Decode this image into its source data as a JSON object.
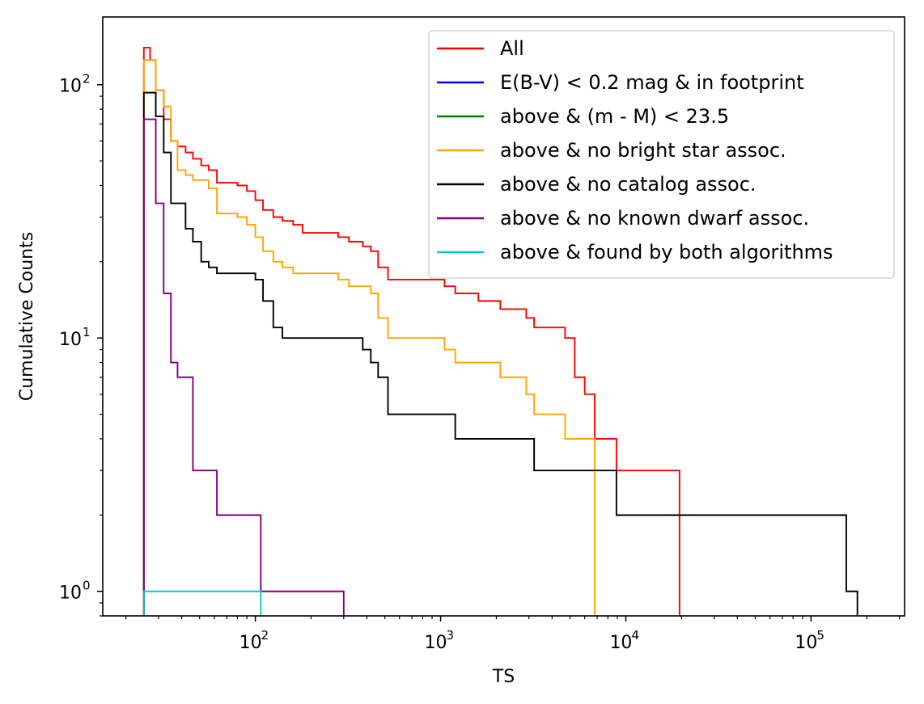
{
  "chart_data": {
    "type": "line",
    "xlabel": "TS",
    "ylabel": "Cumulative Counts",
    "xscale": "log",
    "yscale": "log",
    "xlim": [
      15,
      320000
    ],
    "ylim": [
      0.8,
      185
    ],
    "grid": false,
    "legend_position": "top-right",
    "x_ticks": [
      {
        "base": "10",
        "exp": "2",
        "value": 100
      },
      {
        "base": "10",
        "exp": "3",
        "value": 1000
      },
      {
        "base": "10",
        "exp": "4",
        "value": 10000
      },
      {
        "base": "10",
        "exp": "5",
        "value": 100000
      }
    ],
    "y_ticks": [
      {
        "base": "10",
        "exp": "0",
        "value": 1
      },
      {
        "base": "10",
        "exp": "1",
        "value": 10
      },
      {
        "base": "10",
        "exp": "2",
        "value": 100
      }
    ],
    "series": [
      {
        "name": "All",
        "color": "#ff0000",
        "x": [
          25,
          27,
          29,
          32,
          35,
          38,
          42,
          46,
          51,
          56,
          62,
          80,
          90,
          100,
          110,
          125,
          140,
          160,
          180,
          280,
          320,
          380,
          420,
          460,
          520,
          1050,
          1200,
          1600,
          2100,
          2900,
          3200,
          4700,
          5300,
          6000,
          6800,
          8900,
          19500
        ],
        "y": [
          140,
          125,
          95,
          73,
          60,
          57,
          54,
          51,
          48,
          46,
          41,
          40,
          38,
          35,
          32,
          30,
          29,
          28,
          26,
          25,
          24,
          23,
          22,
          19,
          17,
          16,
          15,
          14,
          13,
          12,
          11,
          10,
          7,
          6,
          4,
          3,
          2
        ]
      },
      {
        "name": "E(B-V) < 0.2 mag & in footprint",
        "color": "#0000ff",
        "x": [],
        "y": []
      },
      {
        "name": "above & (m - M) < 23.5",
        "color": "#008000",
        "x": [],
        "y": []
      },
      {
        "name": "above & no bright star assoc.",
        "color": "#ffa500",
        "x": [
          25,
          29,
          32,
          35,
          38,
          42,
          46,
          56,
          62,
          80,
          90,
          100,
          110,
          125,
          140,
          160,
          180,
          280,
          320,
          380,
          420,
          460,
          520,
          1050,
          1200,
          1600,
          2100,
          2900,
          3200,
          4700,
          6800
        ],
        "y": [
          125,
          95,
          82,
          60,
          46,
          44,
          42,
          39,
          31,
          30,
          28,
          25,
          22,
          20,
          19,
          18,
          18,
          17,
          16,
          16,
          15,
          12,
          10,
          9,
          8,
          8,
          7,
          6,
          5,
          4,
          3
        ]
      },
      {
        "name": "above & no catalog assoc.",
        "color": "#000000",
        "x": [
          25,
          29,
          32,
          35,
          38,
          42,
          46,
          51,
          56,
          62,
          80,
          100,
          110,
          125,
          140,
          280,
          380,
          420,
          460,
          520,
          1050,
          1200,
          3200,
          8900,
          155000,
          178000
        ],
        "y": [
          93,
          75,
          54,
          34,
          34,
          27,
          24,
          20,
          19,
          18,
          18,
          17,
          14,
          11,
          10,
          10,
          9,
          8,
          7,
          5,
          5,
          4,
          3,
          2,
          1,
          1
        ]
      },
      {
        "name": "above & no known dwarf assoc.",
        "color": "#800080",
        "x": [
          25,
          29,
          32,
          35,
          38,
          42,
          46,
          51,
          62,
          80,
          107,
          300
        ],
        "y": [
          73,
          34,
          15,
          8,
          7,
          7,
          3,
          3,
          2,
          2,
          1,
          1
        ]
      },
      {
        "name": "above & found by both algorithms",
        "color": "#00cccc",
        "x": [
          25,
          107
        ],
        "y": [
          1,
          1
        ]
      }
    ]
  }
}
